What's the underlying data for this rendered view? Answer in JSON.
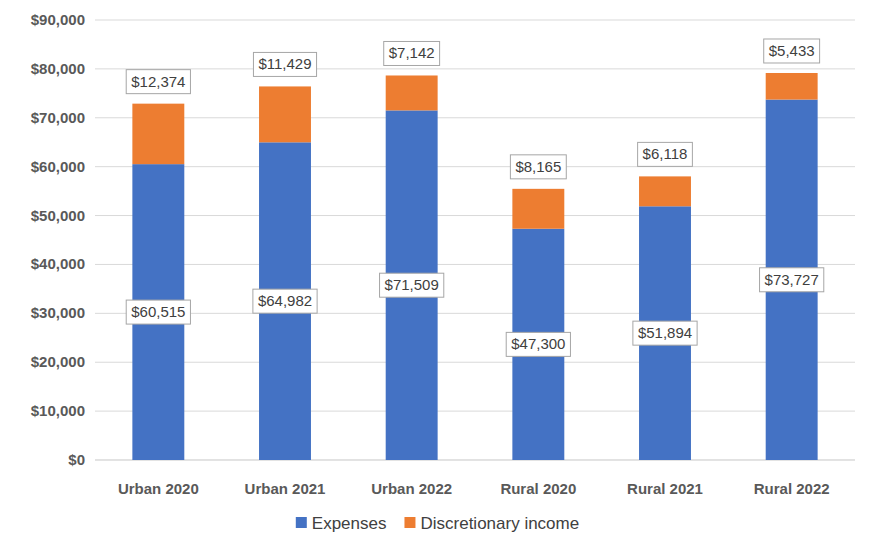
{
  "chart_data": {
    "type": "bar",
    "stacked": true,
    "grid": true,
    "legend": "bottom",
    "data_labels": true,
    "categories": [
      "Urban 2020",
      "Urban 2021",
      "Urban 2022",
      "Rural 2020",
      "Rural 2021",
      "Rural 2022"
    ],
    "series": [
      {
        "name": "Expenses",
        "color": "#4472c4",
        "values": [
          60515,
          64982,
          71509,
          47300,
          51894,
          73727
        ],
        "value_labels": [
          "$60,515",
          "$64,982",
          "$71,509",
          "$47,300",
          "$51,894",
          "$73,727"
        ]
      },
      {
        "name": "Discretionary income",
        "color": "#ed7d31",
        "values": [
          12374,
          11429,
          7142,
          8165,
          6118,
          5433
        ],
        "value_labels": [
          "$12,374",
          "$11,429",
          "$7,142",
          "$8,165",
          "$6,118",
          "$5,433"
        ]
      }
    ],
    "ylim": [
      0,
      90000
    ],
    "yticks": [
      {
        "value": 0,
        "label": "$0"
      },
      {
        "value": 10000,
        "label": "$10,000"
      },
      {
        "value": 20000,
        "label": "$20,000"
      },
      {
        "value": 30000,
        "label": "$30,000"
      },
      {
        "value": 40000,
        "label": "$40,000"
      },
      {
        "value": 50000,
        "label": "$50,000"
      },
      {
        "value": 60000,
        "label": "$60,000"
      },
      {
        "value": 70000,
        "label": "$70,000"
      },
      {
        "value": 80000,
        "label": "$80,000"
      },
      {
        "value": 90000,
        "label": "$90,000"
      }
    ]
  }
}
